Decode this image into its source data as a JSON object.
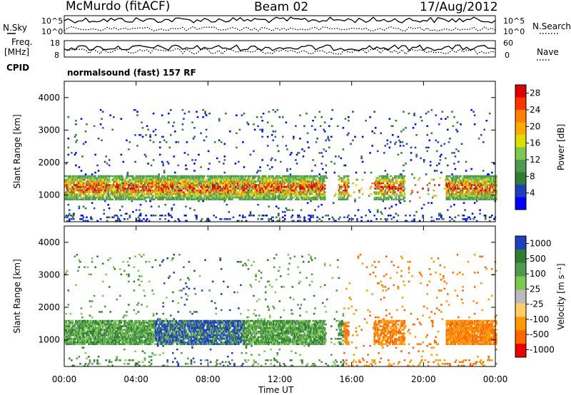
{
  "header": {
    "station": "McMurdo (fitACF)",
    "beam": "Beam 02",
    "date": "17/Aug/2012"
  },
  "status_panel": {
    "left_label_top": "N.Sky",
    "left_label_mid1": "Freq.",
    "left_label_mid2": "[MHz]",
    "left_label_cpid": "CPID",
    "right_label_top": "N.Search",
    "right_label_mid": "Nave",
    "nsky_ticks": [
      "10^5",
      "10^0"
    ],
    "freq_ticks": [
      "18",
      "8"
    ],
    "nave_ticks": [
      "60",
      "0"
    ],
    "cpid_text": "normalsound (fast) 157 RF"
  },
  "chart_data": [
    {
      "type": "heatmap",
      "title": "",
      "xlabel": "",
      "ylabel": "Slant Range [km]",
      "x_range_hours": [
        0,
        24
      ],
      "y_range_km": [
        180,
        4500
      ],
      "y_ticks": [
        "1000",
        "2000",
        "3000",
        "4000"
      ],
      "y_tick_values": [
        1000,
        2000,
        3000,
        4000
      ],
      "colorbar_label": "Power [dB]",
      "colorbar_ticks": [
        "4",
        "8",
        "12",
        "16",
        "20",
        "24",
        "28"
      ],
      "colorbar_tick_values": [
        4,
        8,
        12,
        16,
        20,
        24,
        28
      ],
      "colorbar_range": [
        0,
        30
      ],
      "colors": [
        "#0000ff",
        "#1f3fbf",
        "#2e7d32",
        "#4f9a4f",
        "#7ec850",
        "#dddd00",
        "#ffaa00",
        "#ff7f00",
        "#ff3300",
        "#dd0000"
      ]
    },
    {
      "type": "heatmap",
      "title": "",
      "xlabel": "Time UT",
      "ylabel": "Slant Range [km]",
      "x_range_hours": [
        0,
        24
      ],
      "y_range_km": [
        180,
        4500
      ],
      "y_ticks": [
        "1000",
        "2000",
        "3000",
        "4000"
      ],
      "y_tick_values": [
        1000,
        2000,
        3000,
        4000
      ],
      "x_ticks": [
        "00:00",
        "04:00",
        "08:00",
        "12:00",
        "16:00",
        "20:00",
        "00:00"
      ],
      "x_tick_values": [
        0,
        4,
        8,
        12,
        16,
        20,
        24
      ],
      "colorbar_label": "Velocity [m s⁻¹]",
      "colorbar_ticks": [
        "1000",
        "500",
        "100",
        "25",
        "-25",
        "-100",
        "-500",
        "-1000"
      ],
      "colors": [
        "#1f3fbf",
        "#2e7d32",
        "#4f9a4f",
        "#7ec850",
        "#bbbbbb",
        "#ffcc66",
        "#ff9900",
        "#ff6600",
        "#ee0000"
      ]
    }
  ]
}
